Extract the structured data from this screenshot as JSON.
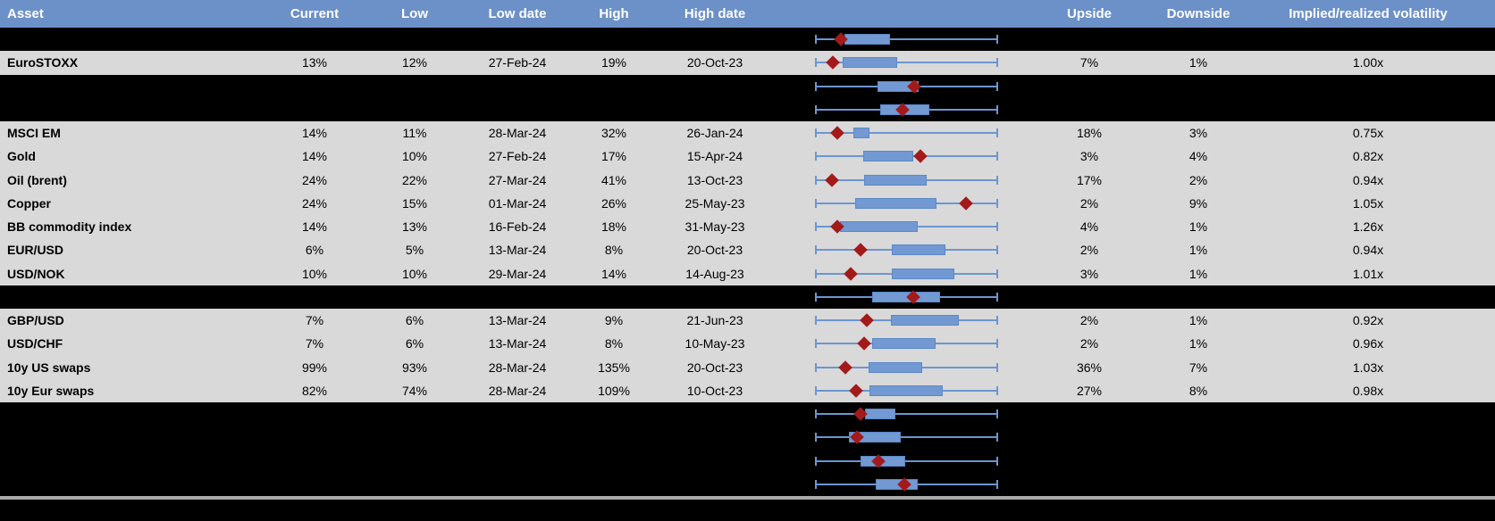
{
  "colors": {
    "header_bg": "#6c90c8",
    "header_text": "#ffffff",
    "data_row_bg": "#d9d9d9",
    "masked_row_bg": "#000000",
    "whisker_blue": "#6d95d0",
    "box_blue": "#7299d2",
    "diamond_red": "#a31a1a",
    "divider_gray": "#a9a9a9"
  },
  "header": {
    "columns": [
      "Asset",
      "Current",
      "Low",
      "Low date",
      "High",
      "High date",
      "",
      "Upside",
      "Downside",
      "Implied/realized volatility"
    ]
  },
  "rows": [
    {
      "type": "masked",
      "boxplot": {
        "box_start": 16.1,
        "box_end": 41.0,
        "diamond": 14.1
      }
    },
    {
      "type": "data",
      "asset": "EuroSTOXX",
      "current": "13%",
      "low": "12%",
      "low_date": "27-Feb-24",
      "high": "19%",
      "high_date": "20-Oct-23",
      "upside": "7%",
      "downside": "1%",
      "implied": "1.00x",
      "boxplot": {
        "box_start": 15.0,
        "box_end": 44.9,
        "diamond": 9.6
      }
    },
    {
      "type": "masked",
      "boxplot": {
        "box_start": 34.0,
        "box_end": 56.6,
        "diamond": 54.1
      }
    },
    {
      "type": "masked",
      "boxplot": {
        "box_start": 35.6,
        "box_end": 62.4,
        "diamond": 47.8
      }
    },
    {
      "type": "data",
      "asset": "MSCI EM",
      "current": "14%",
      "low": "11%",
      "low_date": "28-Mar-24",
      "high": "32%",
      "high_date": "26-Jan-24",
      "upside": "18%",
      "downside": "3%",
      "implied": "0.75x",
      "boxplot": {
        "box_start": 21.0,
        "box_end": 29.6,
        "diamond": 12.3
      }
    },
    {
      "type": "data",
      "asset": "Gold",
      "current": "14%",
      "low": "10%",
      "low_date": "27-Feb-24",
      "high": "17%",
      "high_date": "15-Apr-24",
      "upside": "3%",
      "downside": "4%",
      "implied": "0.82x",
      "boxplot": {
        "box_start": 26.3,
        "box_end": 53.5,
        "diamond": 57.6
      }
    },
    {
      "type": "data",
      "asset": "Oil (brent)",
      "current": "24%",
      "low": "22%",
      "low_date": "27-Mar-24",
      "high": "41%",
      "high_date": "13-Oct-23",
      "upside": "17%",
      "downside": "2%",
      "implied": "0.94x",
      "boxplot": {
        "box_start": 26.7,
        "box_end": 61.1,
        "diamond": 9.1
      }
    },
    {
      "type": "data",
      "asset": "Copper",
      "current": "24%",
      "low": "15%",
      "low_date": "01-Mar-24",
      "high": "26%",
      "high_date": "25-May-23",
      "upside": "2%",
      "downside": "9%",
      "implied": "1.05x",
      "boxplot": {
        "box_start": 21.8,
        "box_end": 66.5,
        "diamond": 82.4
      }
    },
    {
      "type": "data",
      "asset": "BB commodity index",
      "current": "14%",
      "low": "13%",
      "low_date": "16-Feb-24",
      "high": "18%",
      "high_date": "31-May-23",
      "upside": "4%",
      "downside": "1%",
      "implied": "1.26x",
      "boxplot": {
        "box_start": 13.7,
        "box_end": 56.0,
        "diamond": 12.0
      }
    },
    {
      "type": "data",
      "asset": "EUR/USD",
      "current": "6%",
      "low": "5%",
      "low_date": "13-Mar-24",
      "high": "8%",
      "high_date": "20-Oct-23",
      "upside": "2%",
      "downside": "1%",
      "implied": "0.94x",
      "boxplot": {
        "box_start": 42.1,
        "box_end": 71.4,
        "diamond": 24.7
      }
    },
    {
      "type": "data",
      "asset": "USD/NOK",
      "current": "10%",
      "low": "10%",
      "low_date": "29-Mar-24",
      "high": "14%",
      "high_date": "14-Aug-23",
      "upside": "3%",
      "downside": "1%",
      "implied": "1.01x",
      "boxplot": {
        "box_start": 42.1,
        "box_end": 76.3,
        "diamond": 19.4
      }
    },
    {
      "type": "masked",
      "boxplot": {
        "box_start": 31.2,
        "box_end": 68.1,
        "diamond": 53.5
      }
    },
    {
      "type": "data",
      "asset": "GBP/USD",
      "current": "7%",
      "low": "6%",
      "low_date": "13-Mar-24",
      "high": "9%",
      "high_date": "21-Jun-23",
      "upside": "2%",
      "downside": "1%",
      "implied": "0.92x",
      "boxplot": {
        "box_start": 41.6,
        "box_end": 78.7,
        "diamond": 28.3
      }
    },
    {
      "type": "data",
      "asset": "USD/CHF",
      "current": "7%",
      "low": "6%",
      "low_date": "13-Mar-24",
      "high": "8%",
      "high_date": "10-May-23",
      "upside": "2%",
      "downside": "1%",
      "implied": "0.96x",
      "boxplot": {
        "box_start": 31.2,
        "box_end": 65.7,
        "diamond": 26.7
      }
    },
    {
      "type": "data",
      "asset": "10y US swaps",
      "current": "99%",
      "low": "93%",
      "low_date": "28-Mar-24",
      "high": "135%",
      "high_date": "20-Oct-23",
      "upside": "36%",
      "downside": "7%",
      "implied": "1.03x",
      "boxplot": {
        "box_start": 29.1,
        "box_end": 58.4,
        "diamond": 16.6
      }
    },
    {
      "type": "data",
      "asset": "10y Eur swaps",
      "current": "82%",
      "low": "74%",
      "low_date": "28-Mar-24",
      "high": "109%",
      "high_date": "10-Oct-23",
      "upside": "27%",
      "downside": "8%",
      "implied": "0.98x",
      "boxplot": {
        "box_start": 29.6,
        "box_end": 69.8,
        "diamond": 22.6
      }
    },
    {
      "type": "masked",
      "boxplot": {
        "box_start": 27.5,
        "box_end": 43.8,
        "diamond": 24.7
      }
    },
    {
      "type": "masked",
      "boxplot": {
        "box_start": 18.5,
        "box_end": 46.7,
        "diamond": 23.1
      }
    },
    {
      "type": "masked",
      "boxplot": {
        "box_start": 25.0,
        "box_end": 49.4,
        "diamond": 34.8
      }
    },
    {
      "type": "masked",
      "boxplot": {
        "box_start": 33.0,
        "box_end": 56.0,
        "diamond": 48.6
      }
    }
  ]
}
